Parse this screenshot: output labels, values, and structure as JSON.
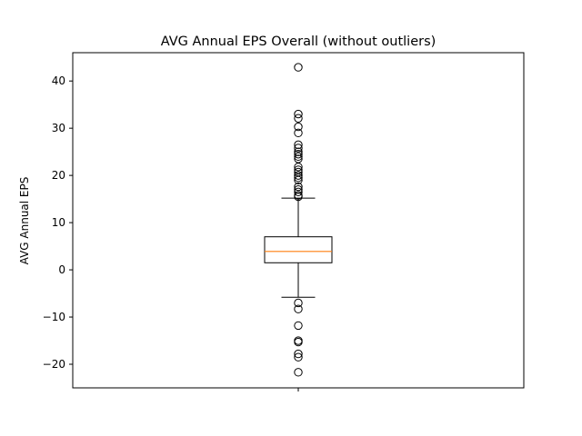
{
  "chart_data": {
    "type": "box",
    "title": "AVG Annual EPS Overall (without outliers)",
    "xlabel": "",
    "ylabel": "AVG Annual EPS",
    "ylim": [
      -25,
      46
    ],
    "yticks": [
      -20,
      -10,
      0,
      10,
      20,
      30,
      40
    ],
    "xticks": [
      1
    ],
    "grid": false,
    "colors": {
      "box": "#000000",
      "median": "#ff7f0e",
      "flier": "#000000",
      "background": "#ffffff"
    },
    "boxes": [
      {
        "whisker_low": -5.8,
        "q1": 1.5,
        "median": 3.9,
        "q3": 7.0,
        "whisker_high": 15.2,
        "fliers": [
          42.9,
          33.0,
          32.1,
          30.3,
          29.0,
          26.5,
          25.8,
          25.0,
          24.5,
          24.0,
          23.5,
          21.8,
          21.2,
          20.7,
          20.0,
          19.5,
          19.0,
          17.6,
          17.0,
          16.5,
          15.8,
          15.5,
          -7.0,
          -8.3,
          -11.8,
          -15.0,
          -15.3,
          -17.8,
          -18.5,
          -21.7
        ]
      }
    ]
  }
}
